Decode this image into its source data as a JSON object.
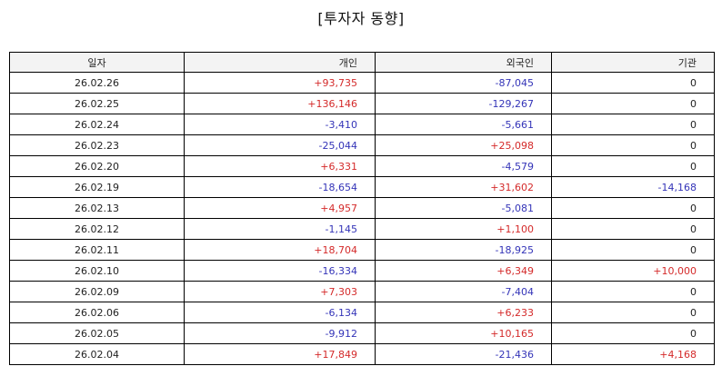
{
  "title": "[투자자 동향]",
  "columns": [
    "일자",
    "개인",
    "외국인",
    "기관"
  ],
  "colors": {
    "positive": "#d42a2a",
    "negative": "#3434b8",
    "neutral": "#222222"
  },
  "rows": [
    {
      "date": "26.02.26",
      "individual": "+93,735",
      "foreign": "-87,045",
      "institution": "0"
    },
    {
      "date": "26.02.25",
      "individual": "+136,146",
      "foreign": "-129,267",
      "institution": "0"
    },
    {
      "date": "26.02.24",
      "individual": "-3,410",
      "foreign": "-5,661",
      "institution": "0"
    },
    {
      "date": "26.02.23",
      "individual": "-25,044",
      "foreign": "+25,098",
      "institution": "0"
    },
    {
      "date": "26.02.20",
      "individual": "+6,331",
      "foreign": "-4,579",
      "institution": "0"
    },
    {
      "date": "26.02.19",
      "individual": "-18,654",
      "foreign": "+31,602",
      "institution": "-14,168"
    },
    {
      "date": "26.02.13",
      "individual": "+4,957",
      "foreign": "-5,081",
      "institution": "0"
    },
    {
      "date": "26.02.12",
      "individual": "-1,145",
      "foreign": "+1,100",
      "institution": "0"
    },
    {
      "date": "26.02.11",
      "individual": "+18,704",
      "foreign": "-18,925",
      "institution": "0"
    },
    {
      "date": "26.02.10",
      "individual": "-16,334",
      "foreign": "+6,349",
      "institution": "+10,000"
    },
    {
      "date": "26.02.09",
      "individual": "+7,303",
      "foreign": "-7,404",
      "institution": "0"
    },
    {
      "date": "26.02.06",
      "individual": "-6,134",
      "foreign": "+6,233",
      "institution": "0"
    },
    {
      "date": "26.02.05",
      "individual": "-9,912",
      "foreign": "+10,165",
      "institution": "0"
    },
    {
      "date": "26.02.04",
      "individual": "+17,849",
      "foreign": "-21,436",
      "institution": "+4,168"
    }
  ]
}
